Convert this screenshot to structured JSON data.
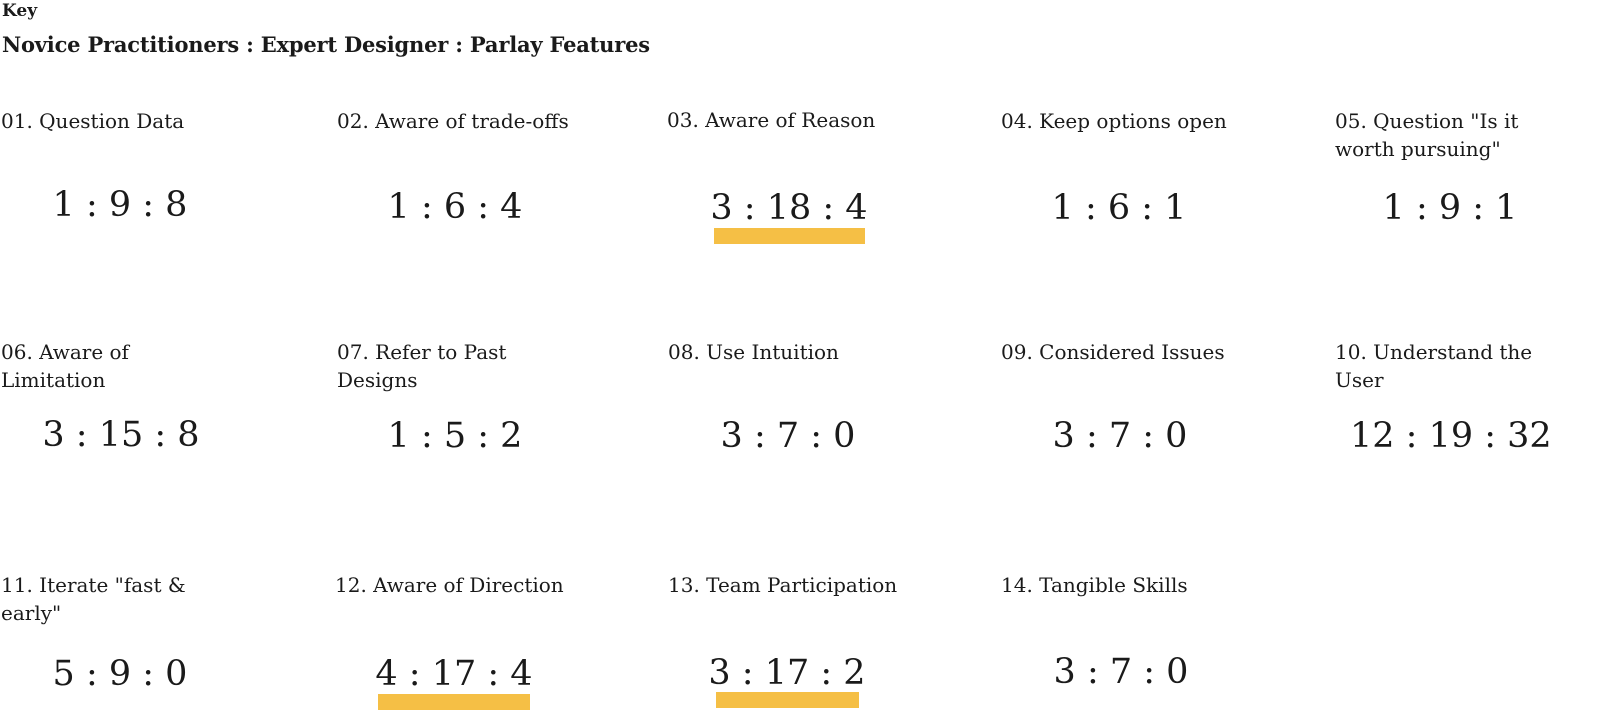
{
  "key": {
    "label": "Key",
    "title": "Novice Practitioners : Expert Designer : Parlay Features"
  },
  "highlight_color": "#F5BF45",
  "items": [
    {
      "label": "01. Question Data",
      "value": "1 : 9 : 8",
      "highlighted": false
    },
    {
      "label": "02. Aware of trade-offs",
      "value": "1 : 6 : 4",
      "highlighted": false
    },
    {
      "label": "03. Aware of Reason",
      "value": "3 : 18 : 4",
      "highlighted": true
    },
    {
      "label": "04. Keep options open",
      "value": "1 : 6 : 1",
      "highlighted": false
    },
    {
      "label": "05. Question \"Is it worth pursuing\"",
      "value": "1 : 9 : 1",
      "highlighted": false
    },
    {
      "label": "06. Aware of Limitation",
      "value": "3 : 15 : 8",
      "highlighted": false
    },
    {
      "label": "07. Refer to Past Designs",
      "value": "1 : 5 : 2",
      "highlighted": false
    },
    {
      "label": "08. Use Intuition",
      "value": "3 : 7 : 0",
      "highlighted": false
    },
    {
      "label": "09. Considered Issues",
      "value": "3 : 7 : 0",
      "highlighted": false
    },
    {
      "label": "10. Understand the User",
      "value": "12 : 19 : 32",
      "highlighted": false
    },
    {
      "label": "11. Iterate \"fast & early\"",
      "value": "5 : 9 : 0",
      "highlighted": false
    },
    {
      "label": "12. Aware of Direction",
      "value": "4 : 17 : 4",
      "highlighted": true
    },
    {
      "label": "13. Team Participation",
      "value": "3 : 17 : 2",
      "highlighted": true
    },
    {
      "label": "14. Tangible Skills",
      "value": "3 : 7 : 0",
      "highlighted": false
    }
  ]
}
